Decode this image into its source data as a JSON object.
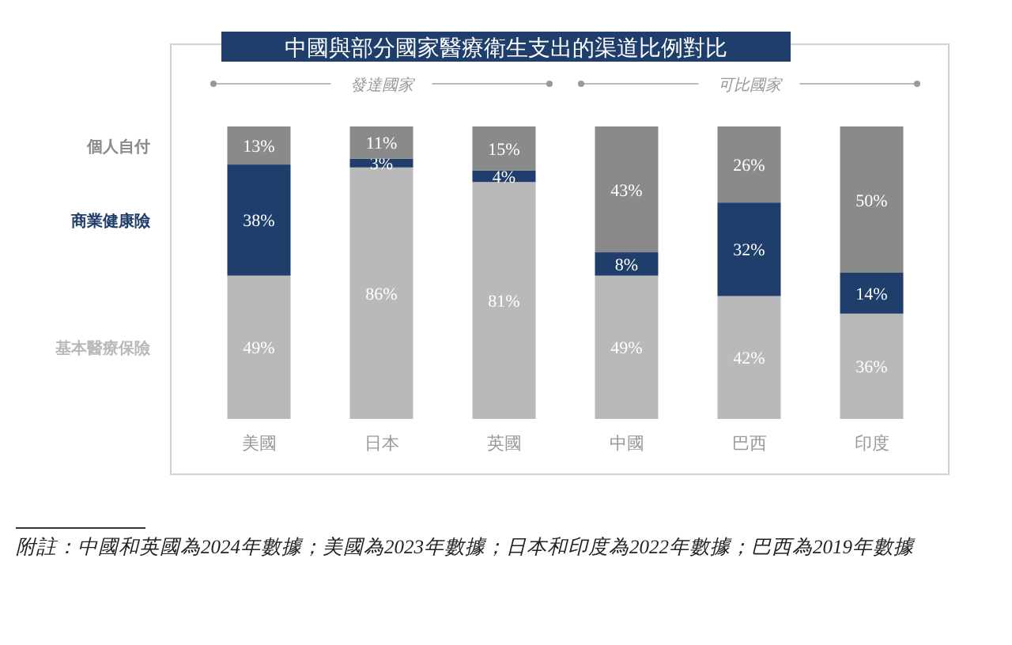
{
  "chart_data": {
    "type": "bar",
    "stacked": true,
    "title": "中國與部分國家醫療衛生支出的渠道比例對比",
    "categories": [
      "美國",
      "日本",
      "英國",
      "中國",
      "巴西",
      "印度"
    ],
    "series": [
      {
        "name": "基本醫療保險",
        "color": "#b9b9b9",
        "values": [
          49,
          86,
          81,
          49,
          42,
          36
        ],
        "value_labels": [
          "49%",
          "86%",
          "81%",
          "49%",
          "42%",
          "36%"
        ]
      },
      {
        "name": "商業健康險",
        "color": "#1f3e6b",
        "values": [
          38,
          3,
          4,
          8,
          32,
          14
        ],
        "value_labels": [
          "38%",
          "3%",
          "4%",
          "8%",
          "32%",
          "14%"
        ]
      },
      {
        "name": "個人自付",
        "color": "#8a8a8a",
        "values": [
          13,
          11,
          15,
          43,
          26,
          50
        ],
        "value_labels": [
          "13%",
          "11%",
          "15%",
          "43%",
          "26%",
          "50%"
        ]
      }
    ],
    "legend": "left",
    "annotations": [
      "發達國家",
      "可比國家",
      "附註：中國和英國為2024年數據；美國為2023年數據；日本和印度為2022年數據；巴西為2019年數據"
    ]
  }
}
